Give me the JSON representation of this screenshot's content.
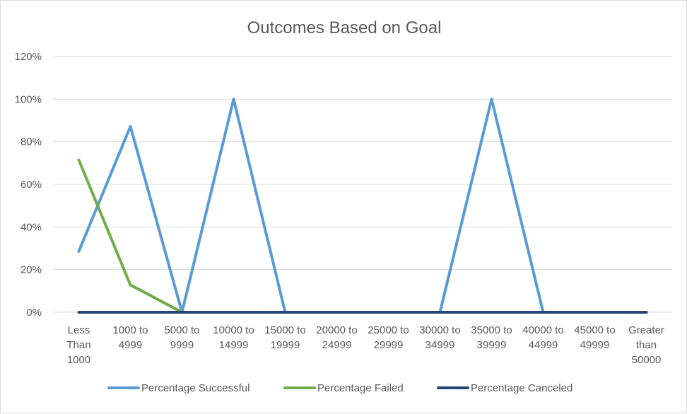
{
  "chart_data": {
    "type": "line",
    "title": "Outcomes Based on Goal",
    "xlabel": "",
    "ylabel": "",
    "ylim": [
      0,
      1.2
    ],
    "yticks": [
      {
        "value": 0,
        "label": "0%"
      },
      {
        "value": 0.2,
        "label": "20%"
      },
      {
        "value": 0.4,
        "label": "40%"
      },
      {
        "value": 0.6,
        "label": "60%"
      },
      {
        "value": 0.8,
        "label": "80%"
      },
      {
        "value": 1.0,
        "label": "100%"
      },
      {
        "value": 1.2,
        "label": "120%"
      }
    ],
    "categories": [
      [
        "Less",
        "Than",
        "1000"
      ],
      [
        "1000 to",
        "4999"
      ],
      [
        "5000 to",
        "9999"
      ],
      [
        "10000 to",
        "14999"
      ],
      [
        "15000 to",
        "19999"
      ],
      [
        "20000 to",
        "24999"
      ],
      [
        "25000 to",
        "29999"
      ],
      [
        "30000 to",
        "34999"
      ],
      [
        "35000 to",
        "39999"
      ],
      [
        "40000 to",
        "44999"
      ],
      [
        "45000 to",
        "49999"
      ],
      [
        "Greater",
        "than",
        "50000"
      ]
    ],
    "series": [
      {
        "name": "Percentage Successful",
        "color": "#5b9bd5",
        "values": [
          0.2857,
          0.8718,
          0,
          1,
          0,
          0,
          0,
          0,
          1,
          0,
          0,
          0
        ]
      },
      {
        "name": "Percentage Failed",
        "color": "#70ad47",
        "values": [
          0.7143,
          0.1282,
          0,
          null,
          null,
          null,
          null,
          null,
          null,
          null,
          null,
          null
        ]
      },
      {
        "name": "Percentage Canceled",
        "color": "#264478",
        "values": [
          0,
          0,
          0,
          0,
          0,
          0,
          0,
          0,
          0,
          0,
          0,
          0
        ]
      }
    ],
    "grid": true,
    "legend": "bottom"
  }
}
